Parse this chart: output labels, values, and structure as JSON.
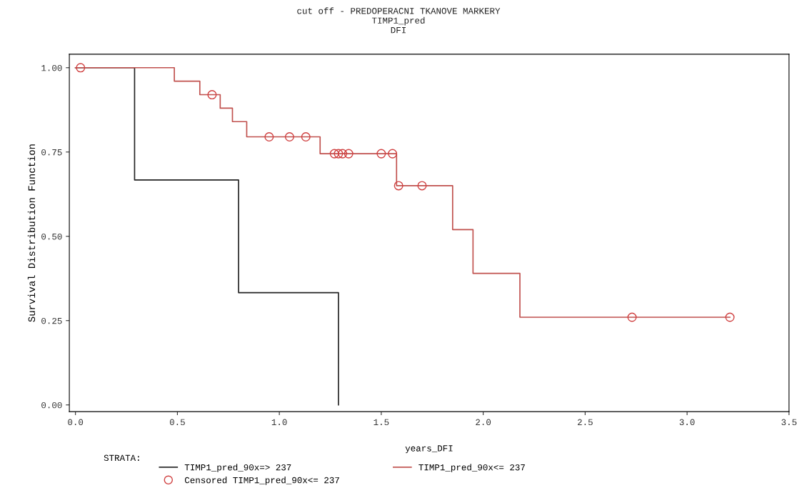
{
  "chart_data": {
    "type": "step",
    "title": "cut off - PREDOPERACNI TKANOVE MARKERY\nTIMP1_pred\nDFI",
    "xlabel": "years_DFI",
    "ylabel": "Survival Distribution Function",
    "legend_title": "STRATA:",
    "series": [
      {
        "name": "TIMP1_pred_90x=> 237",
        "color": "#222222",
        "x": [
          0,
          0.29,
          0.8,
          1.29
        ],
        "values": [
          1.0,
          0.667,
          0.333,
          0.0
        ]
      },
      {
        "name": "TIMP1_pred_90x<= 237",
        "color": "#c0504d",
        "x": [
          0,
          0.485,
          0.61,
          0.71,
          0.77,
          0.84,
          1.2,
          1.575,
          1.85,
          1.95,
          2.18,
          3.21
        ],
        "values": [
          1.0,
          0.96,
          0.92,
          0.88,
          0.84,
          0.795,
          0.745,
          0.65,
          0.52,
          0.39,
          0.26,
          0.26
        ]
      },
      {
        "name": "Censored TIMP1_pred_90x<= 237",
        "type": "scatter",
        "marker": "circle",
        "color": "#d04040",
        "x": [
          0.025,
          0.67,
          0.95,
          1.05,
          1.13,
          1.27,
          1.29,
          1.31,
          1.34,
          1.5,
          1.555,
          1.585,
          1.7,
          2.73,
          3.21
        ],
        "values": [
          1.0,
          0.92,
          0.795,
          0.795,
          0.795,
          0.745,
          0.745,
          0.745,
          0.745,
          0.745,
          0.745,
          0.65,
          0.65,
          0.26,
          0.26
        ]
      }
    ],
    "xlim": [
      -0.03,
      3.5
    ],
    "xticks": [
      {
        "value": 0,
        "label": "0.0"
      },
      {
        "value": 0.5,
        "label": "0.5"
      },
      {
        "value": 1,
        "label": "1.0"
      },
      {
        "value": 1.5,
        "label": "1.5"
      },
      {
        "value": 2,
        "label": "2.0"
      },
      {
        "value": 2.5,
        "label": "2.5"
      },
      {
        "value": 3,
        "label": "3.0"
      },
      {
        "value": 3.5,
        "label": "3.5"
      }
    ],
    "ylim": [
      -0.02,
      1.04
    ],
    "yticks": [
      {
        "value": 0,
        "label": "0.00"
      },
      {
        "value": 0.25,
        "label": "0.25"
      },
      {
        "value": 0.5,
        "label": "0.50"
      },
      {
        "value": 0.75,
        "label": "0.75"
      },
      {
        "value": 1,
        "label": "1.00"
      }
    ],
    "grid": false,
    "legend": "bottom"
  }
}
